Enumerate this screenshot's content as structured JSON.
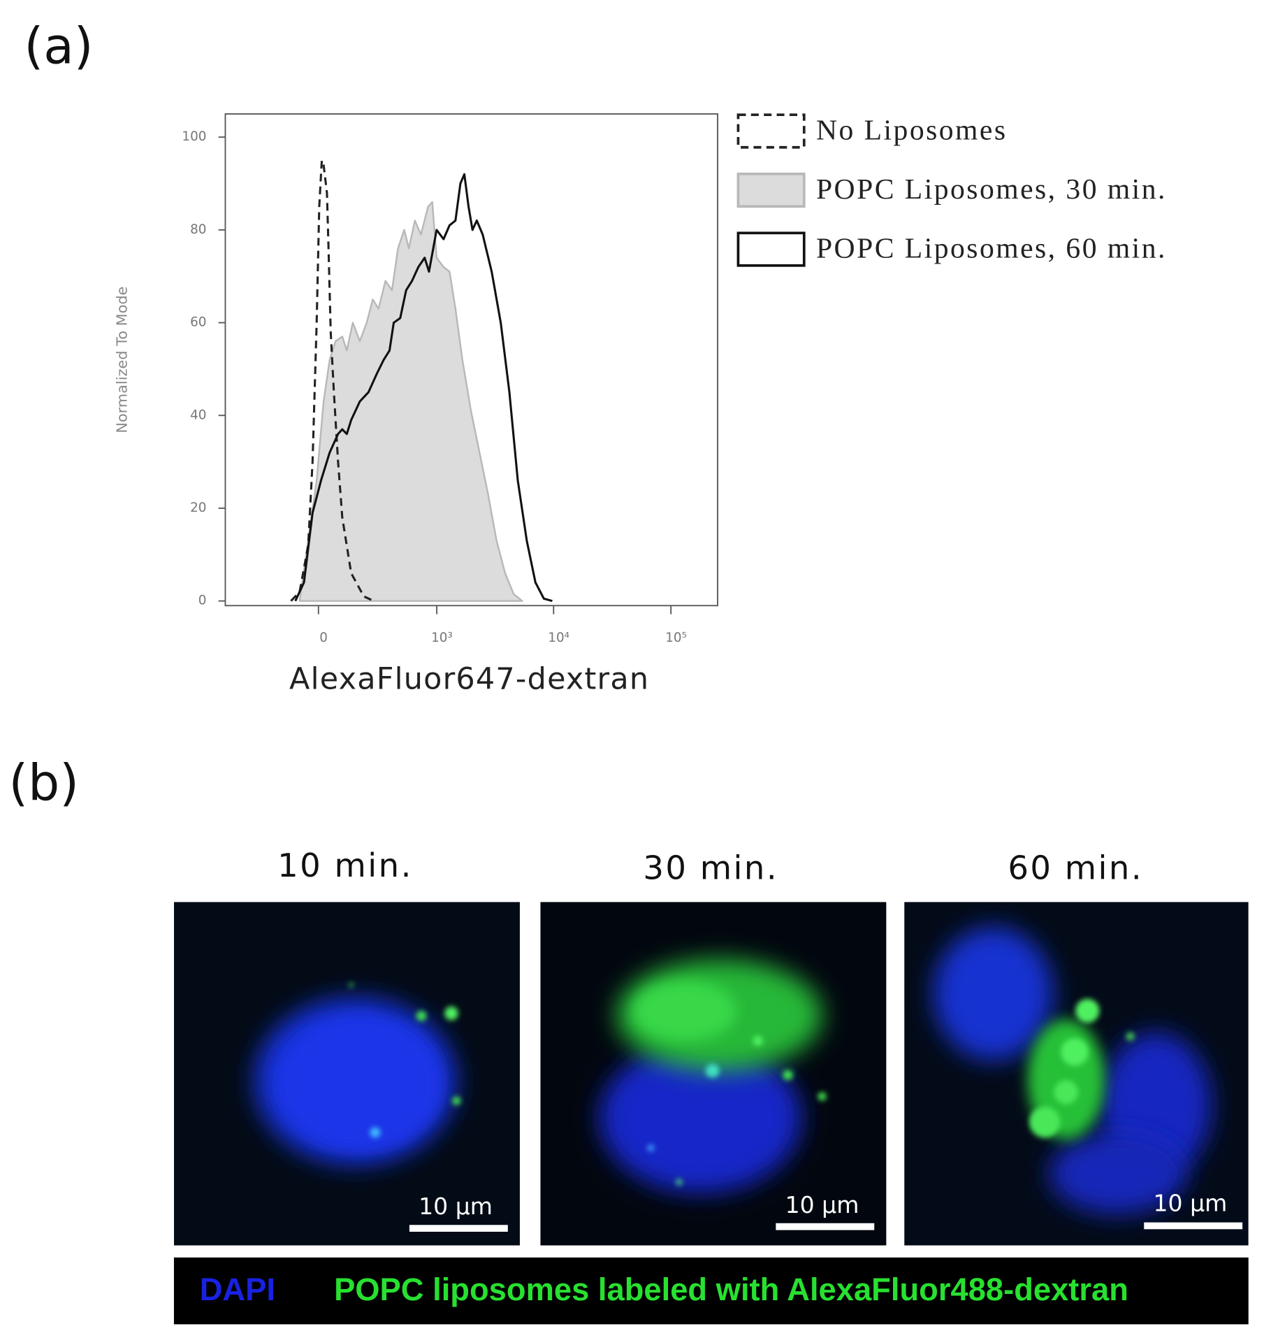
{
  "panel_a": {
    "label": "(a)"
  },
  "chart_data": {
    "type": "line",
    "x_label": "AlexaFluor647-dextran",
    "y_label": "Normalized To Mode",
    "xscale": "logicle",
    "xlim": [
      -600,
      250000
    ],
    "xticks": [
      0,
      {
        "value": 1000,
        "label": "10³"
      },
      {
        "value": 10000,
        "label": "10⁴"
      },
      {
        "value": 100000,
        "label": "10⁵"
      }
    ],
    "ylim": [
      -1,
      105
    ],
    "yticks": [
      0,
      20,
      40,
      60,
      80,
      100
    ],
    "legend": "right",
    "series": [
      {
        "name": "No Liposomes",
        "color": "#222222",
        "fill": "none",
        "line_style": "dashed",
        "x": [
          -112,
          -75,
          -40,
          -23,
          -7,
          3,
          13,
          20,
          33,
          40,
          48,
          61,
          78,
          96,
          136,
          200,
          260
        ],
        "values": [
          0,
          2,
          12,
          30,
          60,
          85,
          95,
          94,
          88,
          75,
          58,
          45,
          30,
          18,
          6,
          1,
          0
        ]
      },
      {
        "name": "POPC Liposomes, 30 min.",
        "color": "#b8b8b8",
        "fill": "#dcdcdc",
        "line_style": "solid",
        "x": [
          -75,
          -7,
          20,
          44,
          68,
          96,
          116,
          144,
          179,
          217,
          253,
          292,
          342,
          396,
          451,
          515,
          567,
          642,
          727,
          840,
          914,
          996,
          1145,
          1290,
          1450,
          1662,
          1968,
          2330,
          2758,
          3263,
          3861,
          4568,
          5405
        ],
        "values": [
          0,
          26,
          43,
          52,
          56,
          57,
          54,
          60,
          56,
          60,
          65,
          63,
          69,
          67,
          76,
          80,
          76,
          82,
          79,
          85,
          86,
          74,
          72,
          71,
          63,
          52,
          41,
          32,
          23,
          13,
          6,
          1.5,
          0
        ]
      },
      {
        "name": "POPC Liposomes, 60 min.",
        "color": "#111111",
        "fill": "none",
        "line_style": "solid",
        "x": [
          -93,
          -57,
          -23,
          10,
          44,
          78,
          96,
          116,
          136,
          179,
          227,
          280,
          329,
          375,
          411,
          473,
          536,
          606,
          690,
          783,
          855,
          996,
          1145,
          1290,
          1450,
          1600,
          1730,
          1880,
          2030,
          2210,
          2480,
          2960,
          3540,
          4200,
          4950,
          5900,
          7000,
          8260,
          9750
        ],
        "values": [
          0,
          4,
          19,
          26,
          32,
          36,
          37,
          36,
          39,
          43,
          45,
          49,
          52,
          54,
          60,
          61,
          67,
          69,
          72,
          74,
          71,
          80,
          78,
          81,
          82,
          90,
          92,
          85,
          80,
          82,
          79,
          71,
          60,
          45,
          26,
          13,
          4,
          0.5,
          0
        ]
      }
    ]
  },
  "panel_b": {
    "label": "(b)",
    "images": [
      {
        "title": "10 min.",
        "scale_bar": "10 µm"
      },
      {
        "title": "30 min.",
        "scale_bar": "10 µm"
      },
      {
        "title": "60 min.",
        "scale_bar": "10 µm"
      }
    ],
    "legend": {
      "dapi": "DAPI",
      "liposomes": "POPC liposomes labeled with AlexaFluor488-dextran"
    }
  }
}
